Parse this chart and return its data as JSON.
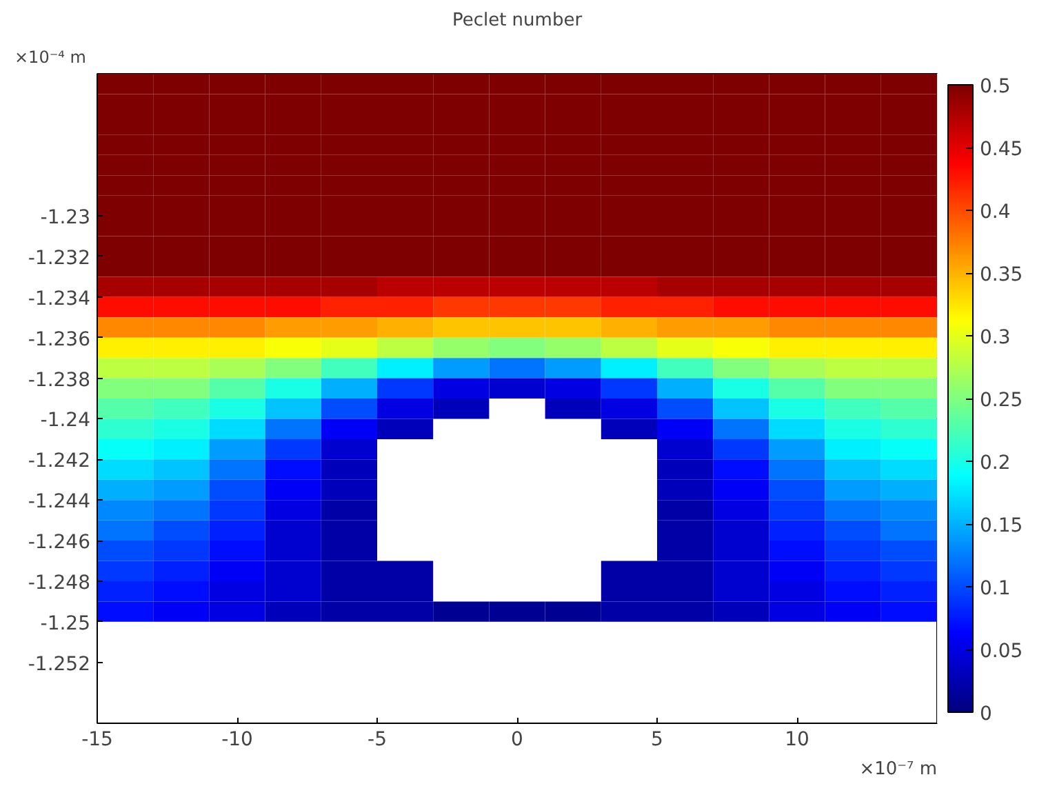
{
  "chart_data": {
    "type": "heatmap",
    "title": "Peclet number",
    "xlabel": "×10⁻⁷ m",
    "ylabel": "×10⁻⁴ m",
    "xlim": [
      -15,
      15
    ],
    "xticks": [
      -15,
      -10,
      -5,
      0,
      5,
      10
    ],
    "ylim": [
      -1.255,
      -1.223
    ],
    "yticks": [
      -1.252,
      -1.25,
      -1.248,
      -1.246,
      -1.244,
      -1.242,
      -1.24,
      -1.238,
      -1.236,
      -1.234,
      -1.232,
      -1.23
    ],
    "clim": [
      0,
      0.5
    ],
    "cticks": [
      0,
      0.05,
      0.1,
      0.15,
      0.2,
      0.25,
      0.3,
      0.35,
      0.4,
      0.45,
      0.5
    ],
    "grid": false,
    "x": [
      -14,
      -12,
      -10,
      -8,
      -6,
      -4,
      -2,
      0,
      2,
      4,
      6,
      8,
      10,
      12,
      14
    ],
    "y": [
      -1.2235,
      -1.2245,
      -1.2255,
      -1.2265,
      -1.2275,
      -1.2285,
      -1.2295,
      -1.2305,
      -1.2315,
      -1.2325,
      -1.2335,
      -1.2345,
      -1.2355,
      -1.2365,
      -1.2375,
      -1.2385,
      -1.2395,
      -1.2405,
      -1.2415,
      -1.2425,
      -1.2435,
      -1.2445,
      -1.2455,
      -1.2465,
      -1.2475,
      -1.2485,
      -1.2495
    ],
    "cells": [
      [
        0.5,
        0.5,
        0.5,
        0.5,
        0.5,
        0.5,
        0.5,
        0.5,
        0.5,
        0.5,
        0.5,
        0.5,
        0.5,
        0.5,
        0.5
      ],
      [
        0.5,
        0.5,
        0.5,
        0.5,
        0.5,
        0.5,
        0.5,
        0.5,
        0.5,
        0.5,
        0.5,
        0.5,
        0.5,
        0.5,
        0.5
      ],
      [
        0.5,
        0.5,
        0.5,
        0.5,
        0.5,
        0.5,
        0.5,
        0.5,
        0.5,
        0.5,
        0.5,
        0.5,
        0.5,
        0.5,
        0.5
      ],
      [
        0.5,
        0.5,
        0.5,
        0.5,
        0.5,
        0.5,
        0.5,
        0.5,
        0.5,
        0.5,
        0.5,
        0.5,
        0.5,
        0.5,
        0.5
      ],
      [
        0.5,
        0.5,
        0.5,
        0.5,
        0.5,
        0.5,
        0.5,
        0.5,
        0.5,
        0.5,
        0.5,
        0.5,
        0.5,
        0.5,
        0.5
      ],
      [
        0.5,
        0.5,
        0.5,
        0.5,
        0.5,
        0.5,
        0.5,
        0.5,
        0.5,
        0.5,
        0.5,
        0.5,
        0.5,
        0.5,
        0.5
      ],
      [
        0.5,
        0.5,
        0.5,
        0.5,
        0.5,
        0.5,
        0.5,
        0.5,
        0.5,
        0.5,
        0.5,
        0.5,
        0.5,
        0.5,
        0.5
      ],
      [
        0.5,
        0.5,
        0.5,
        0.5,
        0.5,
        0.5,
        0.5,
        0.5,
        0.5,
        0.5,
        0.5,
        0.5,
        0.5,
        0.5,
        0.5
      ],
      [
        0.5,
        0.5,
        0.5,
        0.5,
        0.5,
        0.5,
        0.5,
        0.5,
        0.5,
        0.5,
        0.5,
        0.5,
        0.5,
        0.5,
        0.5
      ],
      [
        0.5,
        0.5,
        0.5,
        0.5,
        0.5,
        0.5,
        0.5,
        0.5,
        0.5,
        0.5,
        0.5,
        0.5,
        0.5,
        0.5,
        0.5
      ],
      [
        0.48,
        0.48,
        0.48,
        0.48,
        0.48,
        0.47,
        0.47,
        0.47,
        0.47,
        0.47,
        0.48,
        0.48,
        0.48,
        0.48,
        0.48
      ],
      [
        0.43,
        0.43,
        0.43,
        0.43,
        0.42,
        0.42,
        0.41,
        0.41,
        0.41,
        0.42,
        0.42,
        0.43,
        0.43,
        0.43,
        0.43
      ],
      [
        0.37,
        0.37,
        0.37,
        0.36,
        0.36,
        0.35,
        0.34,
        0.34,
        0.34,
        0.35,
        0.36,
        0.36,
        0.37,
        0.37,
        0.37
      ],
      [
        0.32,
        0.32,
        0.32,
        0.31,
        0.3,
        0.28,
        0.26,
        0.25,
        0.26,
        0.28,
        0.3,
        0.31,
        0.32,
        0.32,
        0.32
      ],
      [
        0.28,
        0.28,
        0.27,
        0.25,
        0.22,
        0.18,
        0.14,
        0.12,
        0.14,
        0.18,
        0.22,
        0.25,
        0.27,
        0.28,
        0.28
      ],
      [
        0.25,
        0.25,
        0.23,
        0.2,
        0.15,
        0.09,
        0.05,
        0.04,
        0.05,
        0.09,
        0.15,
        0.2,
        0.23,
        0.25,
        0.25
      ],
      [
        0.23,
        0.22,
        0.2,
        0.16,
        0.1,
        0.05,
        0.03,
        null,
        0.03,
        0.05,
        0.1,
        0.16,
        0.2,
        0.22,
        0.23
      ],
      [
        0.21,
        0.2,
        0.17,
        0.12,
        0.06,
        0.03,
        null,
        null,
        null,
        0.03,
        0.06,
        0.12,
        0.17,
        0.2,
        0.21
      ],
      [
        0.19,
        0.18,
        0.14,
        0.09,
        0.04,
        null,
        null,
        null,
        null,
        null,
        0.04,
        0.09,
        0.14,
        0.18,
        0.19
      ],
      [
        0.17,
        0.16,
        0.12,
        0.07,
        0.03,
        null,
        null,
        null,
        null,
        null,
        0.03,
        0.07,
        0.12,
        0.16,
        0.17
      ],
      [
        0.15,
        0.14,
        0.1,
        0.06,
        0.03,
        null,
        null,
        null,
        null,
        null,
        0.03,
        0.06,
        0.1,
        0.14,
        0.15
      ],
      [
        0.13,
        0.12,
        0.09,
        0.05,
        0.02,
        null,
        null,
        null,
        null,
        null,
        0.02,
        0.05,
        0.09,
        0.12,
        0.13
      ],
      [
        0.12,
        0.1,
        0.08,
        0.04,
        0.02,
        null,
        null,
        null,
        null,
        null,
        0.02,
        0.04,
        0.08,
        0.1,
        0.12
      ],
      [
        0.1,
        0.09,
        0.07,
        0.04,
        0.02,
        null,
        null,
        null,
        null,
        null,
        0.02,
        0.04,
        0.07,
        0.09,
        0.1
      ],
      [
        0.09,
        0.08,
        0.06,
        0.04,
        0.02,
        0.02,
        null,
        null,
        null,
        0.02,
        0.02,
        0.04,
        0.06,
        0.08,
        0.09
      ],
      [
        0.08,
        0.07,
        0.05,
        0.04,
        0.02,
        0.02,
        null,
        null,
        null,
        0.02,
        0.02,
        0.04,
        0.05,
        0.07,
        0.08
      ],
      [
        0.07,
        0.06,
        0.05,
        0.03,
        0.02,
        0.02,
        0.01,
        0.01,
        0.01,
        0.02,
        0.02,
        0.03,
        0.05,
        0.06,
        0.07
      ]
    ]
  }
}
